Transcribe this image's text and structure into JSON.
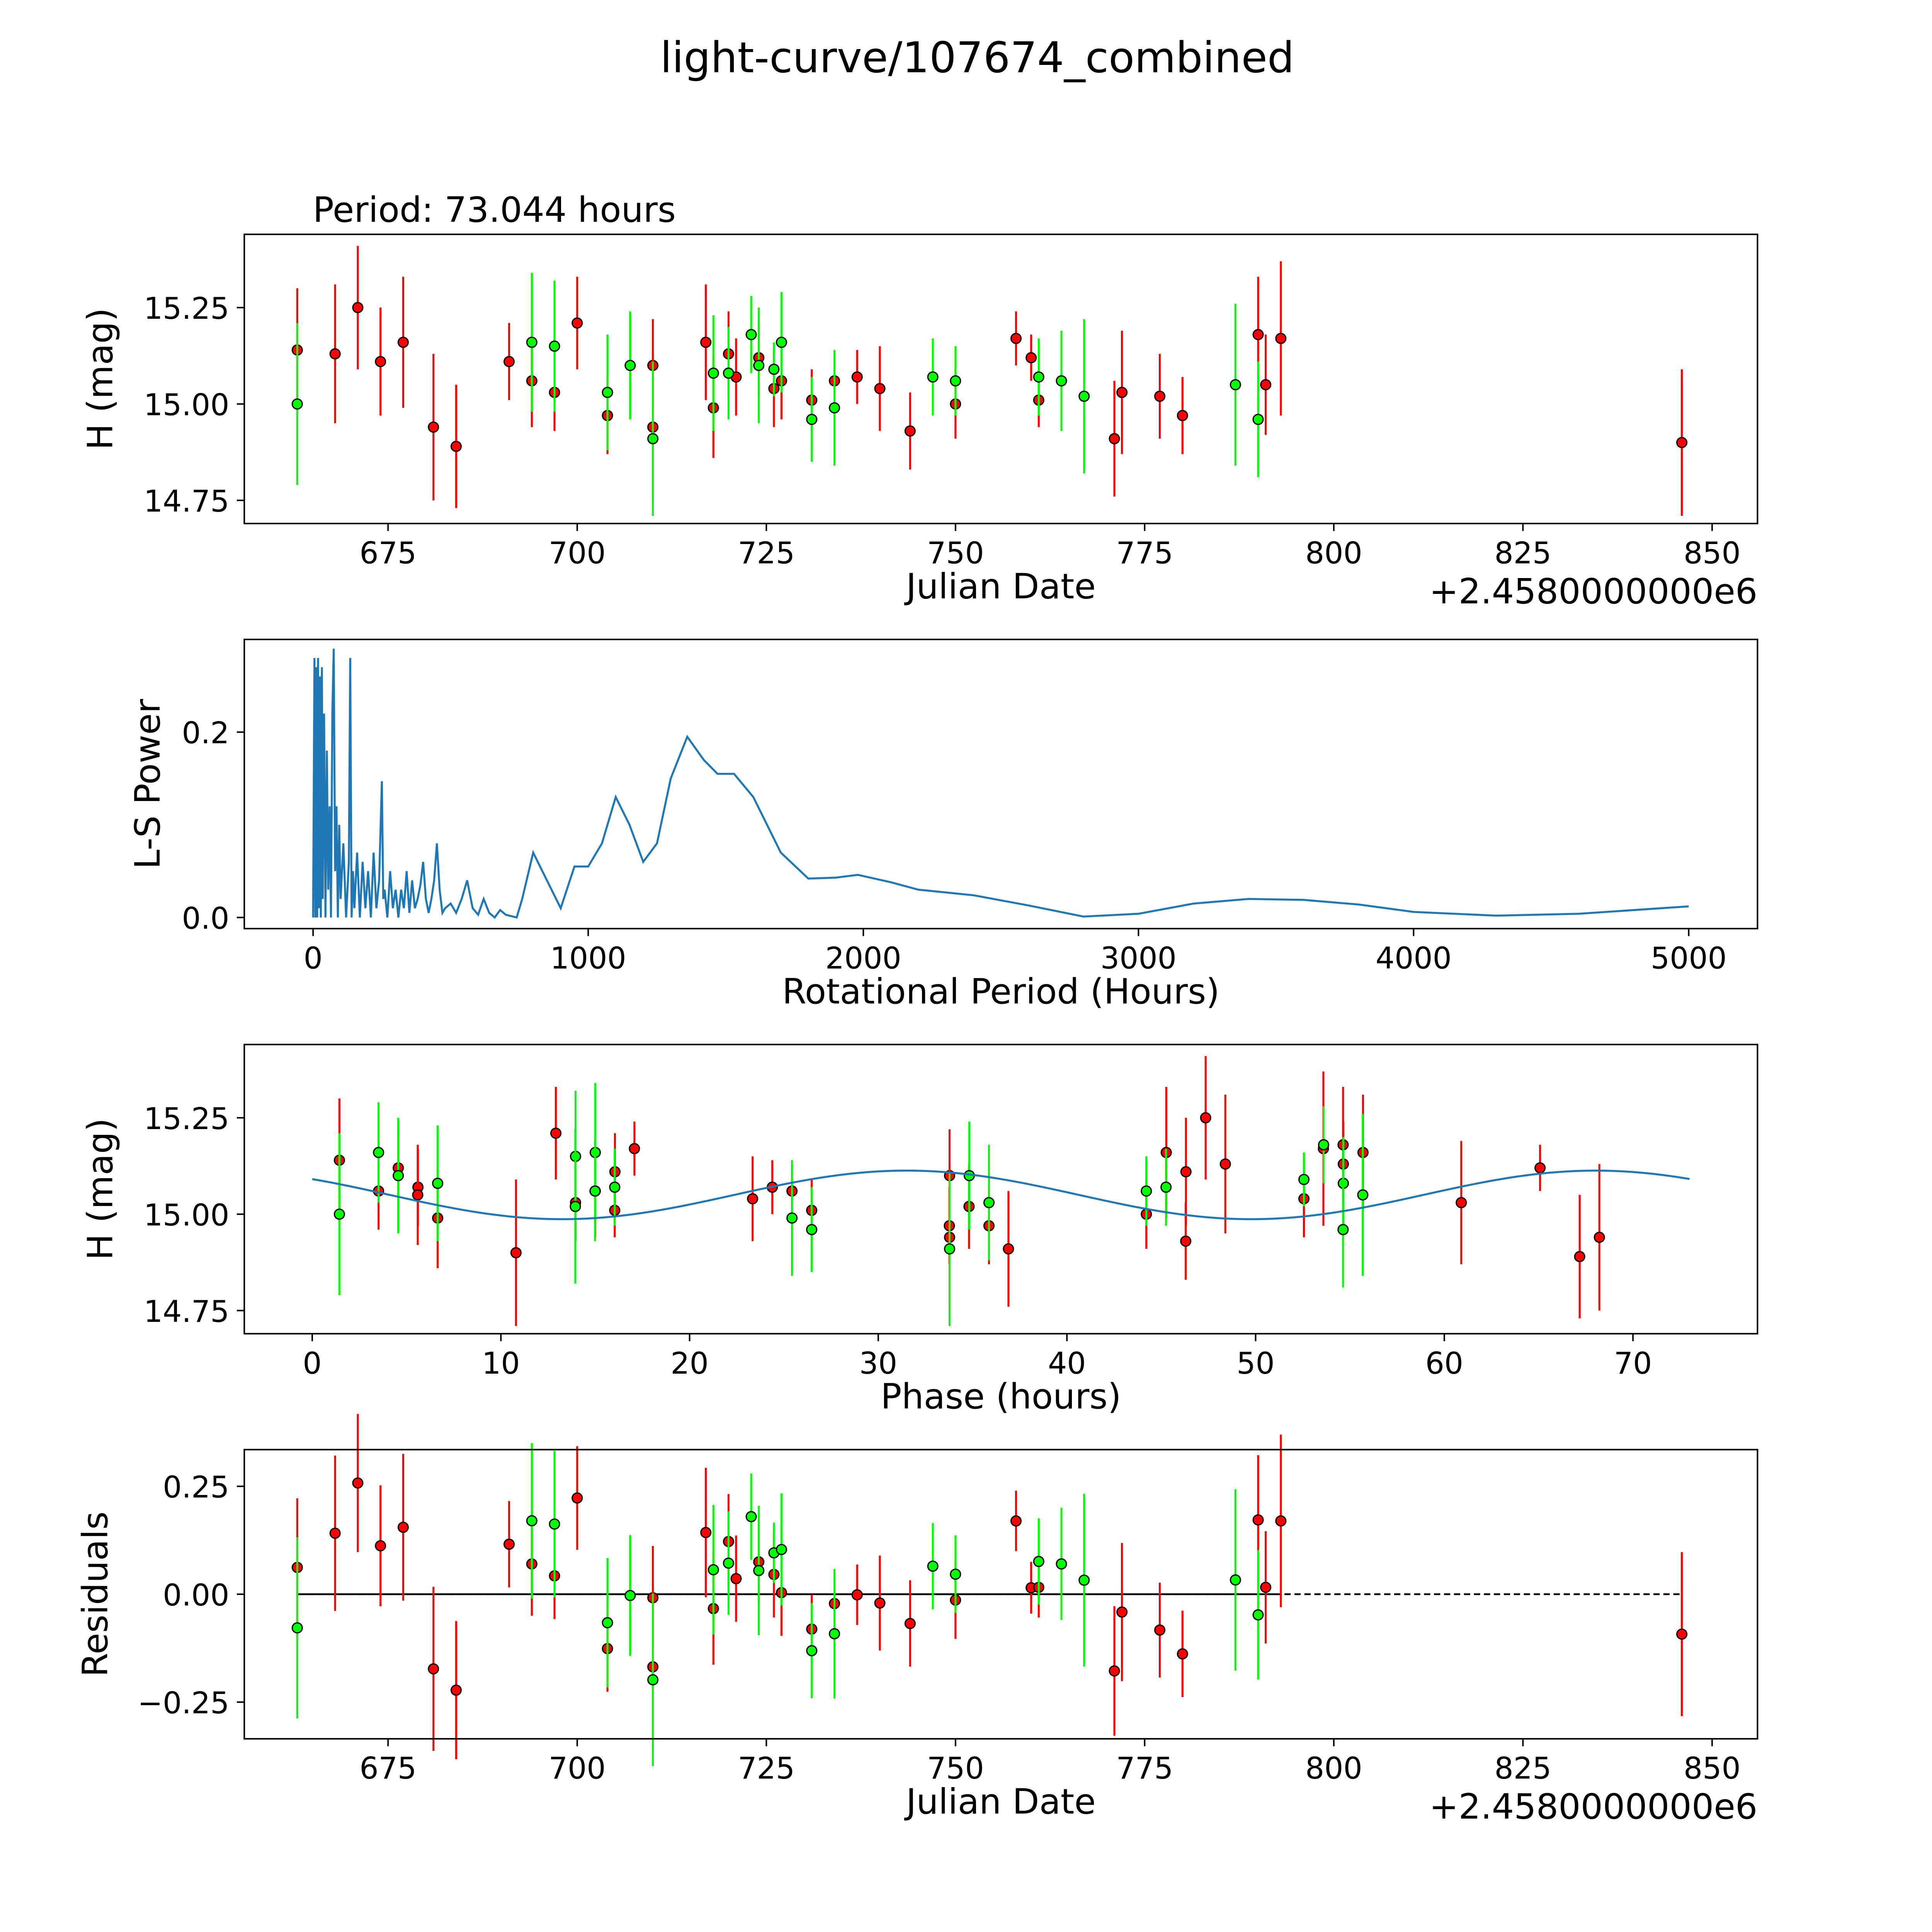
{
  "title": "light-curve/107674_combined",
  "period_label": "Period: 73.044 hours",
  "colors": {
    "red": "#ff0000",
    "green": "#00ff00",
    "line": "#1f77b4"
  },
  "chart_data": [
    {
      "type": "scatter",
      "name": "light-curve",
      "xlabel": "Julian Date",
      "ylabel": "H (mag)",
      "offset_text": "+2.4580000000e6",
      "xlim": [
        656,
        856
      ],
      "ylim": [
        14.69,
        15.44
      ],
      "xticks": [
        "675",
        "700",
        "725",
        "750",
        "775",
        "800",
        "825",
        "850"
      ],
      "yticks": [
        "15.25",
        "15.00",
        "14.75"
      ],
      "red": [
        [
          663,
          15.14,
          0.16
        ],
        [
          668,
          15.13,
          0.18
        ],
        [
          671,
          15.25,
          0.16
        ],
        [
          674,
          15.11,
          0.14
        ],
        [
          677,
          15.16,
          0.17
        ],
        [
          681,
          14.94,
          0.19
        ],
        [
          684,
          14.89,
          0.16
        ],
        [
          691,
          15.11,
          0.1
        ],
        [
          694,
          15.06,
          0.12
        ],
        [
          697,
          15.03,
          0.1
        ],
        [
          700,
          15.21,
          0.12
        ],
        [
          704,
          14.97,
          0.1
        ],
        [
          710,
          15.1,
          0.12
        ],
        [
          710,
          14.94,
          0.19
        ],
        [
          717,
          15.16,
          0.15
        ],
        [
          718,
          14.99,
          0.13
        ],
        [
          720,
          15.13,
          0.11
        ],
        [
          721,
          15.07,
          0.1
        ],
        [
          724,
          15.12,
          0.1
        ],
        [
          726,
          15.04,
          0.1
        ],
        [
          727,
          15.06,
          0.1
        ],
        [
          731,
          15.01,
          0.08
        ],
        [
          734,
          15.06,
          0.07
        ],
        [
          737,
          15.07,
          0.07
        ],
        [
          740,
          15.04,
          0.11
        ],
        [
          744,
          14.93,
          0.1
        ],
        [
          750,
          15.0,
          0.09
        ],
        [
          758,
          15.17,
          0.07
        ],
        [
          760,
          15.12,
          0.06
        ],
        [
          761,
          15.01,
          0.07
        ],
        [
          771,
          14.91,
          0.15
        ],
        [
          772,
          15.03,
          0.16
        ],
        [
          777,
          15.02,
          0.11
        ],
        [
          780,
          14.97,
          0.1
        ],
        [
          790,
          15.18,
          0.15
        ],
        [
          791,
          15.05,
          0.13
        ],
        [
          793,
          15.17,
          0.2
        ],
        [
          846,
          14.9,
          0.19
        ]
      ],
      "green": [
        [
          663,
          15.0,
          0.21
        ],
        [
          694,
          15.16,
          0.18
        ],
        [
          697,
          15.15,
          0.17
        ],
        [
          704,
          15.03,
          0.15
        ],
        [
          707,
          15.1,
          0.14
        ],
        [
          710,
          14.91,
          0.2
        ],
        [
          718,
          15.08,
          0.15
        ],
        [
          720,
          15.08,
          0.12
        ],
        [
          723,
          15.18,
          0.1
        ],
        [
          724,
          15.1,
          0.15
        ],
        [
          726,
          15.09,
          0.07
        ],
        [
          727,
          15.16,
          0.13
        ],
        [
          731,
          14.96,
          0.11
        ],
        [
          734,
          14.99,
          0.15
        ],
        [
          747,
          15.07,
          0.1
        ],
        [
          750,
          15.06,
          0.09
        ],
        [
          761,
          15.07,
          0.1
        ],
        [
          764,
          15.06,
          0.13
        ],
        [
          767,
          15.02,
          0.2
        ],
        [
          787,
          15.05,
          0.21
        ],
        [
          790,
          14.96,
          0.15
        ]
      ]
    },
    {
      "type": "line",
      "name": "periodogram",
      "xlabel": "Rotational Period (Hours)",
      "ylabel": "L-S Power",
      "xlim": [
        -250,
        5250
      ],
      "ylim": [
        -0.012,
        0.3
      ],
      "xticks": [
        "0",
        "1000",
        "2000",
        "3000",
        "4000",
        "5000"
      ],
      "yticks": [
        "0.2",
        "0.0"
      ],
      "x": [
        0,
        5,
        8,
        12,
        15,
        18,
        22,
        25,
        28,
        32,
        35,
        40,
        45,
        50,
        55,
        60,
        65,
        70,
        75,
        80,
        85,
        90,
        95,
        100,
        110,
        120,
        130,
        135,
        140,
        145,
        150,
        160,
        170,
        180,
        190,
        200,
        210,
        220,
        230,
        240,
        250,
        255,
        260,
        270,
        280,
        290,
        300,
        310,
        320,
        330,
        340,
        350,
        360,
        370,
        380,
        390,
        400,
        410,
        420,
        430,
        440,
        450,
        460,
        470,
        480,
        500,
        520,
        540,
        560,
        580,
        600,
        620,
        640,
        660,
        680,
        700,
        740,
        760,
        800,
        850,
        900,
        950,
        1000,
        1050,
        1100,
        1150,
        1200,
        1250,
        1300,
        1360,
        1420,
        1470,
        1530,
        1600,
        1700,
        1800,
        1900,
        1980,
        2100,
        2200,
        2400,
        2600,
        2800,
        3000,
        3200,
        3400,
        3600,
        3800,
        4000,
        4300,
        4600,
        5000
      ],
      "y": [
        0.0,
        0.28,
        0.0,
        0.27,
        0.0,
        0.28,
        0.01,
        0.26,
        0.0,
        0.27,
        0.02,
        0.22,
        0.0,
        0.18,
        0.03,
        0.12,
        0.0,
        0.22,
        0.29,
        0.05,
        0.12,
        0.0,
        0.1,
        0.02,
        0.08,
        0.0,
        0.06,
        0.28,
        0.0,
        0.05,
        0.01,
        0.07,
        0.0,
        0.06,
        0.01,
        0.05,
        0.0,
        0.07,
        0.01,
        0.04,
        0.147,
        0.02,
        0.03,
        0.0,
        0.05,
        0.01,
        0.03,
        0.0,
        0.03,
        0.01,
        0.05,
        0.005,
        0.04,
        0.01,
        0.02,
        0.035,
        0.06,
        0.02,
        0.005,
        0.02,
        0.04,
        0.08,
        0.03,
        0.005,
        0.01,
        0.015,
        0.005,
        0.02,
        0.04,
        0.01,
        0.003,
        0.02,
        0.005,
        0.0,
        0.008,
        0.003,
        0.0,
        0.02,
        0.07,
        0.04,
        0.01,
        0.055,
        0.055,
        0.08,
        0.13,
        0.1,
        0.06,
        0.08,
        0.15,
        0.195,
        0.17,
        0.155,
        0.155,
        0.13,
        0.07,
        0.042,
        0.043,
        0.046,
        0.038,
        0.03,
        0.024,
        0.013,
        0.001,
        0.004,
        0.015,
        0.02,
        0.019,
        0.014,
        0.006,
        0.002,
        0.004,
        0.012
      ]
    },
    {
      "type": "scatter",
      "name": "phased",
      "xlabel": "Phase (hours)",
      "ylabel": "H (mag)",
      "period_hours": 73.044,
      "epoch": 662.94,
      "model": {
        "mean": 15.05,
        "amplitude": 0.063,
        "peak_phase": 31.5,
        "harmonic_period": 36.522
      },
      "xlim": [
        -3.6,
        76.6
      ],
      "ylim": [
        14.69,
        15.44
      ],
      "xticks": [
        "0",
        "10",
        "20",
        "30",
        "40",
        "50",
        "60",
        "70"
      ],
      "yticks": [
        "15.25",
        "15.00",
        "14.75"
      ]
    },
    {
      "type": "scatter",
      "name": "residuals",
      "xlabel": "Julian Date",
      "ylabel": "Residuals",
      "offset_text": "+2.4580000000e6",
      "xlim": [
        656,
        856
      ],
      "ylim": [
        -0.335,
        0.335
      ],
      "xticks": [
        "675",
        "700",
        "725",
        "750",
        "775",
        "800",
        "825",
        "850"
      ],
      "yticks": [
        "0.25",
        "0.00",
        "−0.25"
      ]
    }
  ]
}
